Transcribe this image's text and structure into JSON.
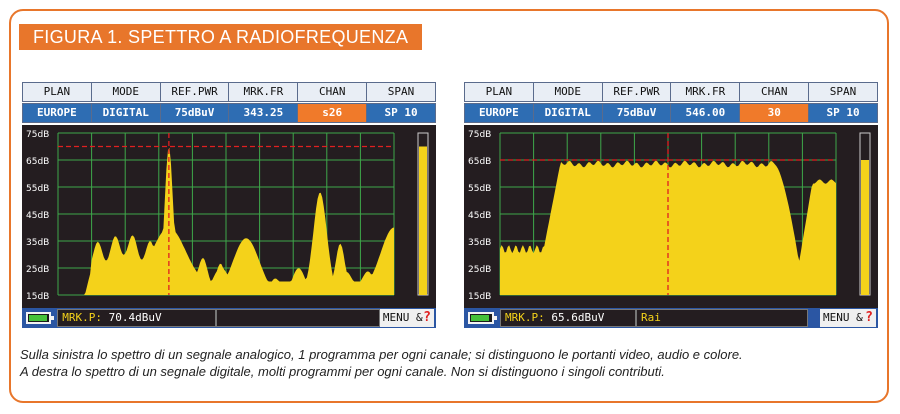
{
  "figure_title": "FIGURA 1. SPETTRO A RADIOFREQUENZA",
  "panels": [
    {
      "header_labels": [
        "PLAN",
        "MODE",
        "REF.PWR",
        "MRK.FR",
        "CHAN",
        "SPAN"
      ],
      "header_values": [
        "EUROPE",
        "DIGITAL",
        "75dBuV",
        "343.25",
        "s26",
        "SP 10"
      ],
      "active_column": 4,
      "y_ticks": [
        "75dB",
        "65dB",
        "55dB",
        "45dB",
        "35dB",
        "25dB",
        "15dB"
      ],
      "ref_level_db": 70,
      "level_bar_db": 70,
      "marker_label": "MRK.P:",
      "marker_value": "70.4dBuV",
      "program_name": "",
      "menu_label": "MENU",
      "menu_glyph": "&",
      "help_glyph": "?",
      "spectrum_type": "analog",
      "colors": {
        "trace": "#f4d21a",
        "marker": "#e02020",
        "grid": "#3ea84a",
        "background": "#241d20"
      }
    },
    {
      "header_labels": [
        "PLAN",
        "MODE",
        "REF.PWR",
        "MRK.FR",
        "CHAN",
        "SPAN"
      ],
      "header_values": [
        "EUROPE",
        "DIGITAL",
        "75dBuV",
        "546.00",
        "30",
        "SP 10"
      ],
      "active_column": 4,
      "y_ticks": [
        "75dB",
        "65dB",
        "55dB",
        "45dB",
        "35dB",
        "25dB",
        "15dB"
      ],
      "ref_level_db": 65,
      "level_bar_db": 65,
      "marker_label": "MRK.P:",
      "marker_value": "65.6dBuV",
      "program_name": "Rai",
      "menu_label": "MENU",
      "menu_glyph": "&",
      "help_glyph": "?",
      "spectrum_type": "digital",
      "colors": {
        "trace": "#f4d21a",
        "marker": "#e02020",
        "grid": "#3ea84a",
        "background": "#241d20"
      }
    }
  ],
  "caption": {
    "line1": "Sulla sinistra lo spettro di un segnale analogico, 1 programma per ogni canale; si distinguono le portanti video, audio e colore.",
    "line2": "A destra lo spettro di un segnale digitale, molti programmi per ogni canale. Non si distinguono i singoli contributi."
  }
}
